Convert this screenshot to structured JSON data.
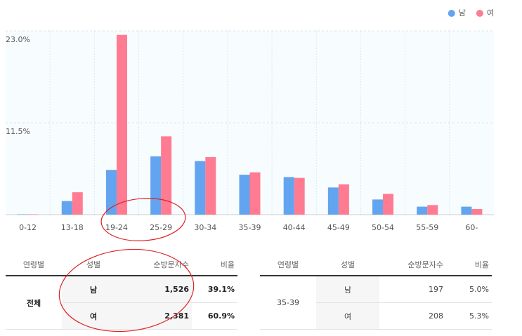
{
  "chart_data": {
    "type": "bar",
    "categories": [
      "0-12",
      "13-18",
      "19-24",
      "25-29",
      "30-34",
      "35-39",
      "40-44",
      "45-49",
      "50-54",
      "55-59",
      "60-"
    ],
    "series": [
      {
        "name": "남",
        "color": "#63a4f0",
        "values": [
          0.05,
          1.7,
          5.6,
          7.3,
          6.7,
          5.0,
          4.7,
          3.4,
          1.9,
          1.0,
          1.0
        ]
      },
      {
        "name": "여",
        "color": "#ff7b92",
        "values": [
          0.05,
          2.8,
          22.5,
          9.8,
          7.2,
          5.3,
          4.6,
          3.8,
          2.6,
          1.2,
          0.7
        ]
      }
    ],
    "ylim": [
      0,
      23
    ],
    "yticks": [
      {
        "value": 11.5,
        "label": "11.5%"
      },
      {
        "value": 23,
        "label": "23.0%"
      }
    ],
    "grid": true,
    "legend": "top-right"
  },
  "tables": [
    {
      "headers": [
        "연령별",
        "성별",
        "순방문자수",
        "비율"
      ],
      "group": "전체",
      "rows": [
        [
          "남",
          "1,526",
          "39.1%"
        ],
        [
          "여",
          "2,381",
          "60.9%"
        ]
      ]
    },
    {
      "headers": [
        "연령별",
        "성별",
        "순방문자수",
        "비율"
      ],
      "group": "35-39",
      "rows": [
        [
          "남",
          "197",
          "5.0%"
        ],
        [
          "여",
          "208",
          "5.3%"
        ]
      ]
    }
  ]
}
